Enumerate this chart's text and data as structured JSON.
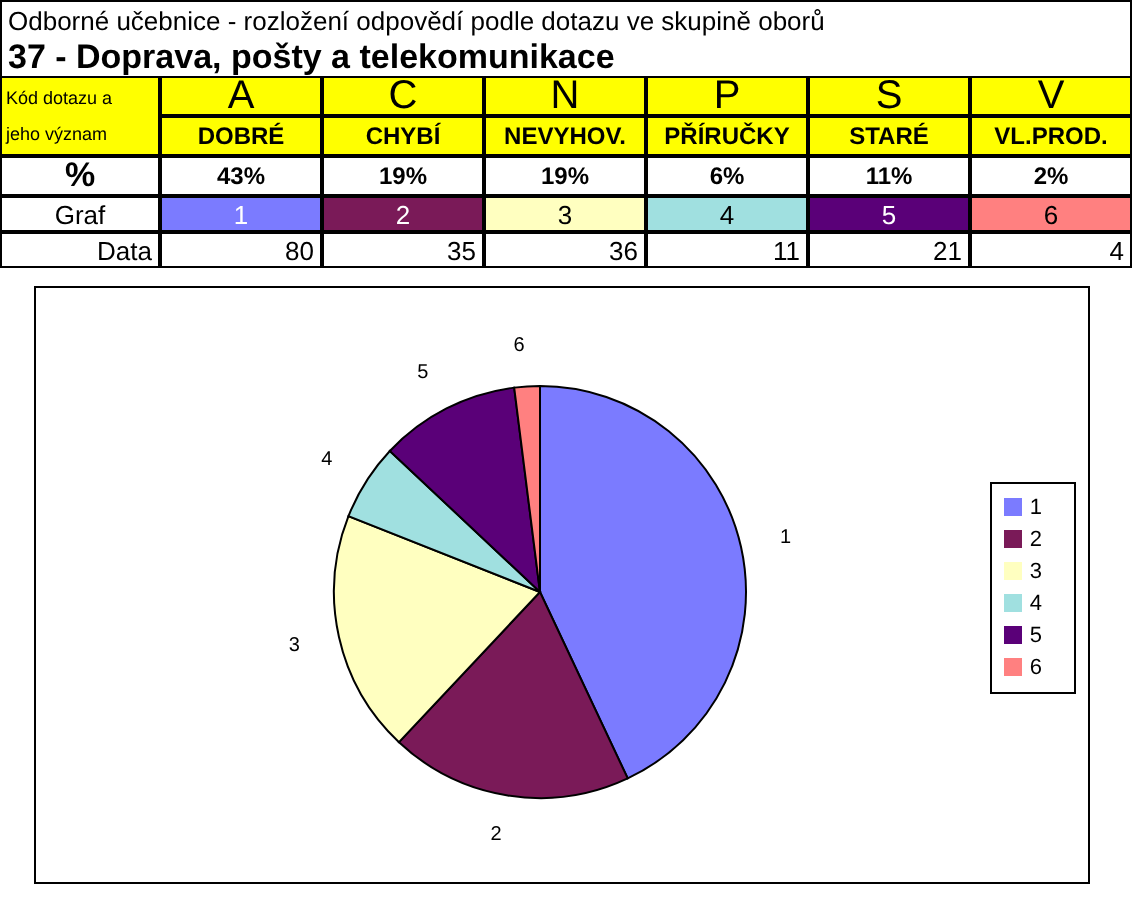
{
  "chart_data": {
    "type": "pie",
    "title": "Odborné učebnice - rozložení odpovědí podle dotazu ve skupině oborů",
    "subtitle": "37 - Doprava, pošty a telekomunikace",
    "categories": [
      "1",
      "2",
      "3",
      "4",
      "5",
      "6"
    ],
    "values": [
      43,
      19,
      19,
      6,
      11,
      2
    ],
    "colors": [
      "#7b7bff",
      "#7a1a58",
      "#ffffc0",
      "#a0e0e0",
      "#5a0078",
      "#ff8080"
    ],
    "legend": "right",
    "annotations": [
      "Kód dotazu a jeho význam",
      "%",
      "Graf",
      "Data",
      {
        "text": "A",
        "x": "1"
      },
      {
        "text": "DOBRÉ",
        "x": "1"
      },
      {
        "text": "43%",
        "x": "1"
      },
      {
        "text": "80",
        "x": "1"
      },
      {
        "text": "C",
        "x": "2"
      },
      {
        "text": "CHYBÍ",
        "x": "2"
      },
      {
        "text": "19%",
        "x": "2"
      },
      {
        "text": "35",
        "x": "2"
      },
      {
        "text": "N",
        "x": "3"
      },
      {
        "text": "NEVYHOV.",
        "x": "3"
      },
      {
        "text": "19%",
        "x": "3"
      },
      {
        "text": "36",
        "x": "3"
      },
      {
        "text": "P",
        "x": "4"
      },
      {
        "text": "PŘÍRUČKY",
        "x": "4"
      },
      {
        "text": "6%",
        "x": "4"
      },
      {
        "text": "11",
        "x": "4"
      },
      {
        "text": "S",
        "x": "5"
      },
      {
        "text": "STARÉ",
        "x": "5"
      },
      {
        "text": "11%",
        "x": "5"
      },
      {
        "text": "21",
        "x": "5"
      },
      {
        "text": "V",
        "x": "6"
      },
      {
        "text": "VL.PROD.",
        "x": "6"
      },
      {
        "text": "2%",
        "x": "6"
      },
      {
        "text": "4",
        "x": "6"
      }
    ]
  }
}
